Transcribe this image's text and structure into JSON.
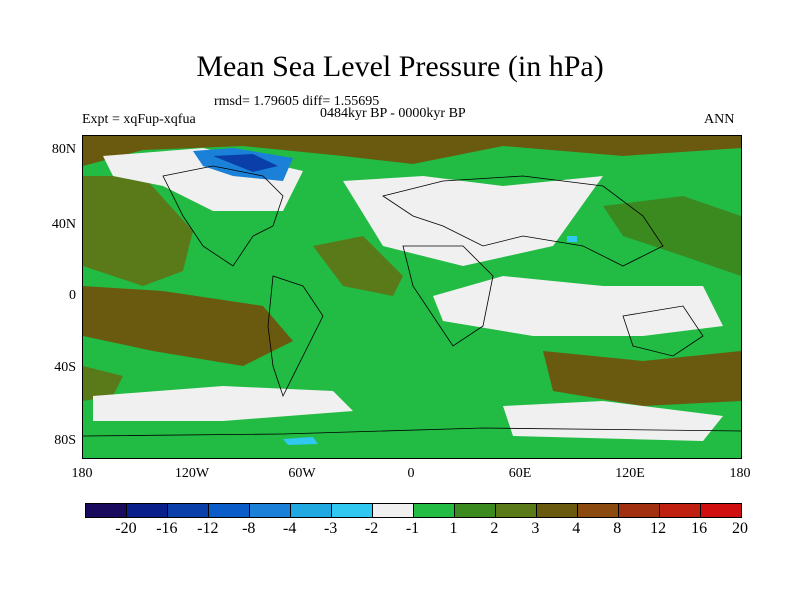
{
  "title": "Mean Sea Level Pressure (in hPa)",
  "stats": "rmsd= 1.79605 diff= 1.55695",
  "expt": "Expt = xqFup-xqfua",
  "period": "0484kyr BP - 0000kyr BP",
  "season": "ANN",
  "y_ticks": [
    "80N",
    "40N",
    "0",
    "40S",
    "80S"
  ],
  "x_ticks": [
    "180",
    "120W",
    "60W",
    "0",
    "60E",
    "120E",
    "180"
  ],
  "colorbar": {
    "colors": [
      "#1a0a5e",
      "#0a1f8a",
      "#0a3ea8",
      "#0a5cc8",
      "#1a80d8",
      "#20a8e0",
      "#30c8f0",
      "#f0f0f0",
      "#22bb44",
      "#3a8a20",
      "#5a7a1a",
      "#6a5a10",
      "#8a4a10",
      "#a03010",
      "#c02010",
      "#d01010"
    ],
    "labels": [
      "-20",
      "-16",
      "-12",
      "-8",
      "-4",
      "-3",
      "-2",
      "-1",
      "1",
      "2",
      "3",
      "4",
      "8",
      "12",
      "16",
      "20"
    ]
  }
}
